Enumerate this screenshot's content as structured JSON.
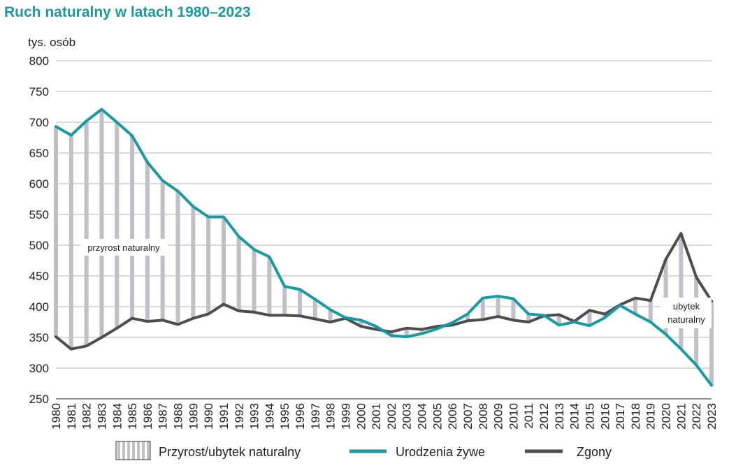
{
  "title": "Ruch naturalny w latach 1980–2023",
  "chart_data": {
    "type": "line",
    "title": "Ruch naturalny w latach 1980–2023",
    "ylabel": "tys. osób",
    "xlabel": "",
    "ylim": [
      250,
      800
    ],
    "yticks": [
      250,
      300,
      350,
      400,
      450,
      500,
      550,
      600,
      650,
      700,
      750,
      800
    ],
    "grid": true,
    "categories": [
      "1980",
      "1981",
      "1982",
      "1983",
      "1984",
      "1985",
      "1986",
      "1987",
      "1988",
      "1989",
      "1990",
      "1991",
      "1992",
      "1993",
      "1994",
      "1995",
      "1996",
      "1997",
      "1998",
      "1999",
      "2000",
      "2001",
      "2002",
      "2003",
      "2004",
      "2005",
      "2006",
      "2007",
      "2008",
      "2009",
      "2010",
      "2011",
      "2012",
      "2013",
      "2014",
      "2015",
      "2016",
      "2017",
      "2018",
      "2019",
      "2020",
      "2021",
      "2022",
      "2023"
    ],
    "series": [
      {
        "name": "Urodzenia żywe",
        "color": "#1a9aa0",
        "values": [
          693,
          679,
          702,
          721,
          700,
          678,
          635,
          605,
          588,
          563,
          546,
          546,
          514,
          493,
          481,
          433,
          428,
          412,
          395,
          382,
          378,
          368,
          353,
          351,
          356,
          364,
          374,
          388,
          414,
          417,
          413,
          388,
          386,
          370,
          375,
          369,
          382,
          402,
          388,
          375,
          355,
          331,
          305,
          272
        ]
      },
      {
        "name": "Zgony",
        "color": "#4d4d4d",
        "values": [
          351,
          331,
          336,
          350,
          365,
          381,
          376,
          378,
          371,
          381,
          388,
          404,
          393,
          391,
          386,
          386,
          385,
          380,
          375,
          381,
          368,
          363,
          359,
          365,
          363,
          368,
          370,
          377,
          379,
          384,
          378,
          375,
          385,
          387,
          376,
          394,
          388,
          403,
          414,
          410,
          477,
          519,
          448,
          409
        ]
      }
    ],
    "area_label": "Przyrost/ubytek naturalny",
    "annotations": {
      "growth": "przyrost naturalny",
      "loss_line1": "ubytek",
      "loss_line2": "naturalny"
    },
    "legend": [
      "Przyrost/ubytek naturalny",
      "Urodzenia żywe",
      "Zgony"
    ],
    "legend_position": "bottom"
  }
}
